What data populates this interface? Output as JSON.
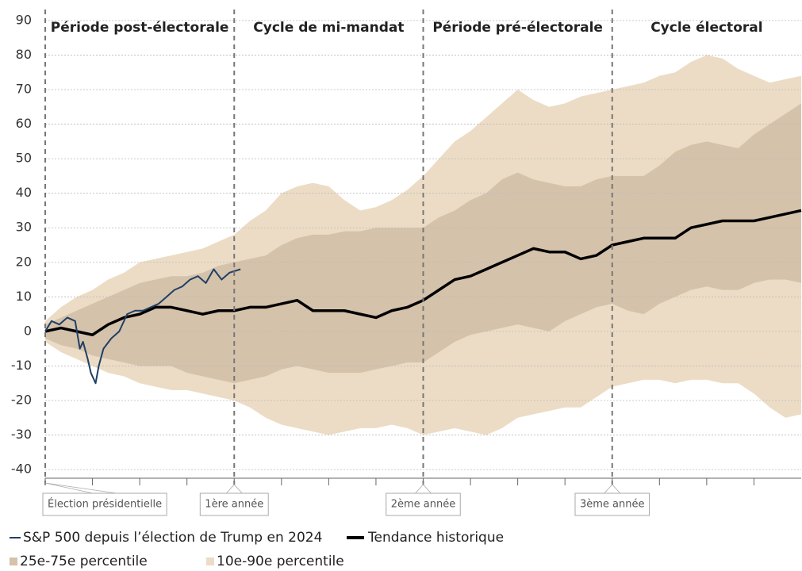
{
  "chart_data": {
    "type": "line",
    "x": [
      0,
      1,
      2,
      3,
      4,
      5,
      6,
      7,
      8,
      9,
      10,
      11,
      12,
      13,
      14,
      15,
      16,
      17,
      18,
      19,
      20,
      21,
      22,
      23,
      24,
      25,
      26,
      27,
      28,
      29,
      30,
      31,
      32,
      33,
      34,
      35,
      36,
      37,
      38,
      39,
      40,
      41,
      42,
      43,
      44,
      45,
      46,
      47,
      48
    ],
    "xlim": [
      0,
      48
    ],
    "xticks": [
      0,
      3,
      6,
      9,
      12,
      15,
      18,
      21,
      24,
      27,
      30,
      33,
      36,
      39,
      42,
      45
    ],
    "ylim": [
      -42.5,
      92.5
    ],
    "yticks": [
      -40,
      -30,
      -20,
      -10,
      0,
      10,
      20,
      30,
      40,
      50,
      60,
      70,
      80,
      90
    ],
    "grid": true,
    "bands": [
      {
        "name": "10e-90e percentile",
        "color": "#ecdcc5",
        "upper": [
          3,
          7,
          10,
          12,
          15,
          17,
          20,
          21,
          22,
          23,
          24,
          26,
          28,
          32,
          35,
          40,
          42,
          43,
          42,
          38,
          35,
          36,
          38,
          41,
          45,
          50,
          55,
          58,
          62,
          66,
          70,
          67,
          65,
          66,
          68,
          69,
          70,
          71,
          72,
          74,
          75,
          78,
          80,
          79,
          76,
          74,
          72,
          73,
          74
        ],
        "lower": [
          -3,
          -6,
          -8,
          -10,
          -12,
          -13,
          -15,
          -16,
          -17,
          -17,
          -18,
          -19,
          -20,
          -22,
          -25,
          -27,
          -28,
          -29,
          -30,
          -29,
          -28,
          -28,
          -27,
          -28,
          -30,
          -29,
          -28,
          -29,
          -30,
          -28,
          -25,
          -24,
          -23,
          -22,
          -22,
          -19,
          -16,
          -15,
          -14,
          -14,
          -15,
          -14,
          -14,
          -15,
          -15,
          -18,
          -22,
          -25,
          -24
        ]
      },
      {
        "name": "25e-75e percentile",
        "color": "#d5c2aa",
        "upper": [
          2,
          4,
          6,
          8,
          10,
          12,
          14,
          15,
          16,
          16,
          17,
          19,
          20,
          21,
          22,
          25,
          27,
          28,
          28,
          29,
          29,
          30,
          30,
          30,
          30,
          33,
          35,
          38,
          40,
          44,
          46,
          44,
          43,
          42,
          42,
          44,
          45,
          45,
          45,
          48,
          52,
          54,
          55,
          54,
          53,
          57,
          60,
          63,
          66
        ],
        "lower": [
          -2,
          -4,
          -5,
          -7,
          -8,
          -9,
          -10,
          -10,
          -10,
          -12,
          -13,
          -14,
          -15,
          -14,
          -13,
          -11,
          -10,
          -11,
          -12,
          -12,
          -12,
          -11,
          -10,
          -9,
          -9,
          -6,
          -3,
          -1,
          0,
          1,
          2,
          1,
          0,
          3,
          5,
          7,
          8,
          6,
          5,
          8,
          10,
          12,
          13,
          12,
          12,
          14,
          15,
          15,
          14
        ]
      }
    ],
    "series": [
      {
        "name": "S&P 500 depuis l’élection de Trump en 2024",
        "color": "#1f3f66",
        "x": [
          0,
          0.4,
          0.9,
          1.4,
          1.9,
          2.2,
          2.4,
          2.7,
          2.9,
          3.2,
          3.4,
          3.7,
          4.2,
          4.7,
          5.2,
          5.7,
          6.2,
          6.7,
          7.2,
          7.7,
          8.2,
          8.7,
          9.2,
          9.7,
          10.2,
          10.7,
          11.2,
          11.7,
          12.4
        ],
        "values": [
          0,
          3,
          2,
          4,
          3,
          -5,
          -3,
          -8,
          -12,
          -15,
          -10,
          -5,
          -2,
          0,
          5,
          6,
          6,
          7,
          8,
          10,
          12,
          13,
          15,
          16,
          14,
          18,
          15,
          17,
          18
        ]
      },
      {
        "name": "Tendance historique",
        "color": "#000000",
        "values": [
          0,
          1,
          0,
          -1,
          2,
          4,
          5,
          7,
          7,
          6,
          5,
          6,
          6,
          7,
          7,
          8,
          9,
          6,
          6,
          6,
          5,
          4,
          6,
          7,
          9,
          12,
          15,
          16,
          18,
          20,
          22,
          24,
          23,
          23,
          21,
          22,
          25,
          26,
          27,
          27,
          27,
          30,
          31,
          32,
          32,
          32,
          33,
          34,
          35
        ]
      }
    ],
    "periods": [
      {
        "label": "Période post-électorale",
        "start": 0,
        "end": 12
      },
      {
        "label": "Cycle de mi-mandat",
        "start": 12,
        "end": 24
      },
      {
        "label": "Période pré-électorale",
        "start": 24,
        "end": 36
      },
      {
        "label": "Cycle électoral",
        "start": 36,
        "end": 48
      }
    ],
    "markers": [
      {
        "x": 0,
        "label": "Élection présidentielle"
      },
      {
        "x": 12,
        "label": "1ère année"
      },
      {
        "x": 24,
        "label": "2ème année"
      },
      {
        "x": 36,
        "label": "3ème année"
      }
    ]
  }
}
